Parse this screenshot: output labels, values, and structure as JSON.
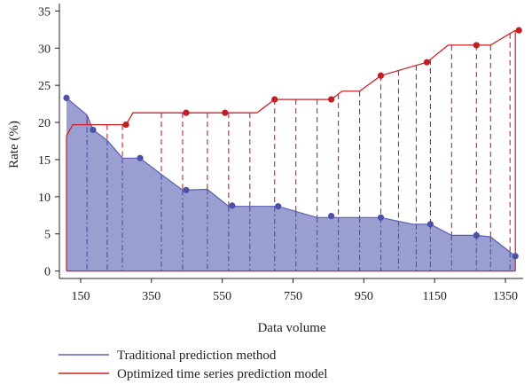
{
  "chart_data": {
    "type": "area",
    "xlabel": "Data volume",
    "ylabel": "Rate (%)",
    "xlim": [
      90,
      1400
    ],
    "ylim": [
      -1,
      36
    ],
    "xticks": [
      150,
      350,
      550,
      750,
      950,
      1150,
      1350
    ],
    "yticks": [
      0,
      5,
      10,
      15,
      20,
      25,
      30,
      35
    ],
    "grid": false,
    "legend_position": "bottom-left",
    "colors": {
      "traditional_line": "#5a5fb5",
      "traditional_fill": "#9b9ed0",
      "traditional_marker": "#4b50a8",
      "optimized_line": "#cc2027",
      "optimized_marker": "#c21e26",
      "axis": "#222222"
    },
    "series": [
      {
        "name": "Traditional prediction method",
        "x": [
          110,
          168,
          185,
          225,
          268,
          318,
          378,
          438,
          508,
          568,
          628,
          708,
          818,
          878,
          998,
          1088,
          1138,
          1198,
          1268,
          1308,
          1378
        ],
        "y": [
          23.3,
          21.0,
          19.0,
          17.6,
          15.2,
          15.2,
          13.0,
          10.9,
          11.0,
          8.7,
          8.7,
          8.7,
          7.2,
          7.2,
          7.2,
          6.3,
          6.3,
          4.8,
          4.8,
          4.6,
          2.0
        ]
      },
      {
        "name": "Optimized time series prediction model",
        "x": [
          110,
          128,
          278,
          298,
          438,
          558,
          648,
          698,
          818,
          858,
          888,
          938,
          998,
          1128,
          1188,
          1268,
          1308,
          1378
        ],
        "y": [
          18.2,
          19.7,
          19.7,
          21.3,
          21.3,
          21.3,
          21.3,
          23.1,
          23.1,
          23.1,
          24.2,
          24.2,
          26.3,
          28.1,
          30.4,
          30.4,
          30.4,
          32.4
        ]
      }
    ],
    "markers": {
      "traditional": {
        "x": [
          110,
          185,
          318,
          448,
          578,
          708,
          858,
          998,
          1138,
          1268,
          1378
        ],
        "y": [
          23.3,
          19.0,
          15.2,
          10.9,
          8.8,
          8.7,
          7.4,
          7.2,
          6.3,
          4.8,
          2.0
        ]
      },
      "optimized": {
        "x": [
          278,
          448,
          558,
          698,
          858,
          998,
          1128,
          1268,
          1388
        ],
        "y": [
          19.7,
          21.3,
          21.3,
          23.1,
          23.1,
          26.3,
          28.1,
          30.4,
          32.4
        ]
      }
    },
    "connector_x": [
      168,
      225,
      268,
      378,
      438,
      508,
      568,
      628,
      698,
      758,
      818,
      878,
      938,
      998,
      1048,
      1098,
      1138,
      1198,
      1268,
      1308,
      1363
    ]
  }
}
